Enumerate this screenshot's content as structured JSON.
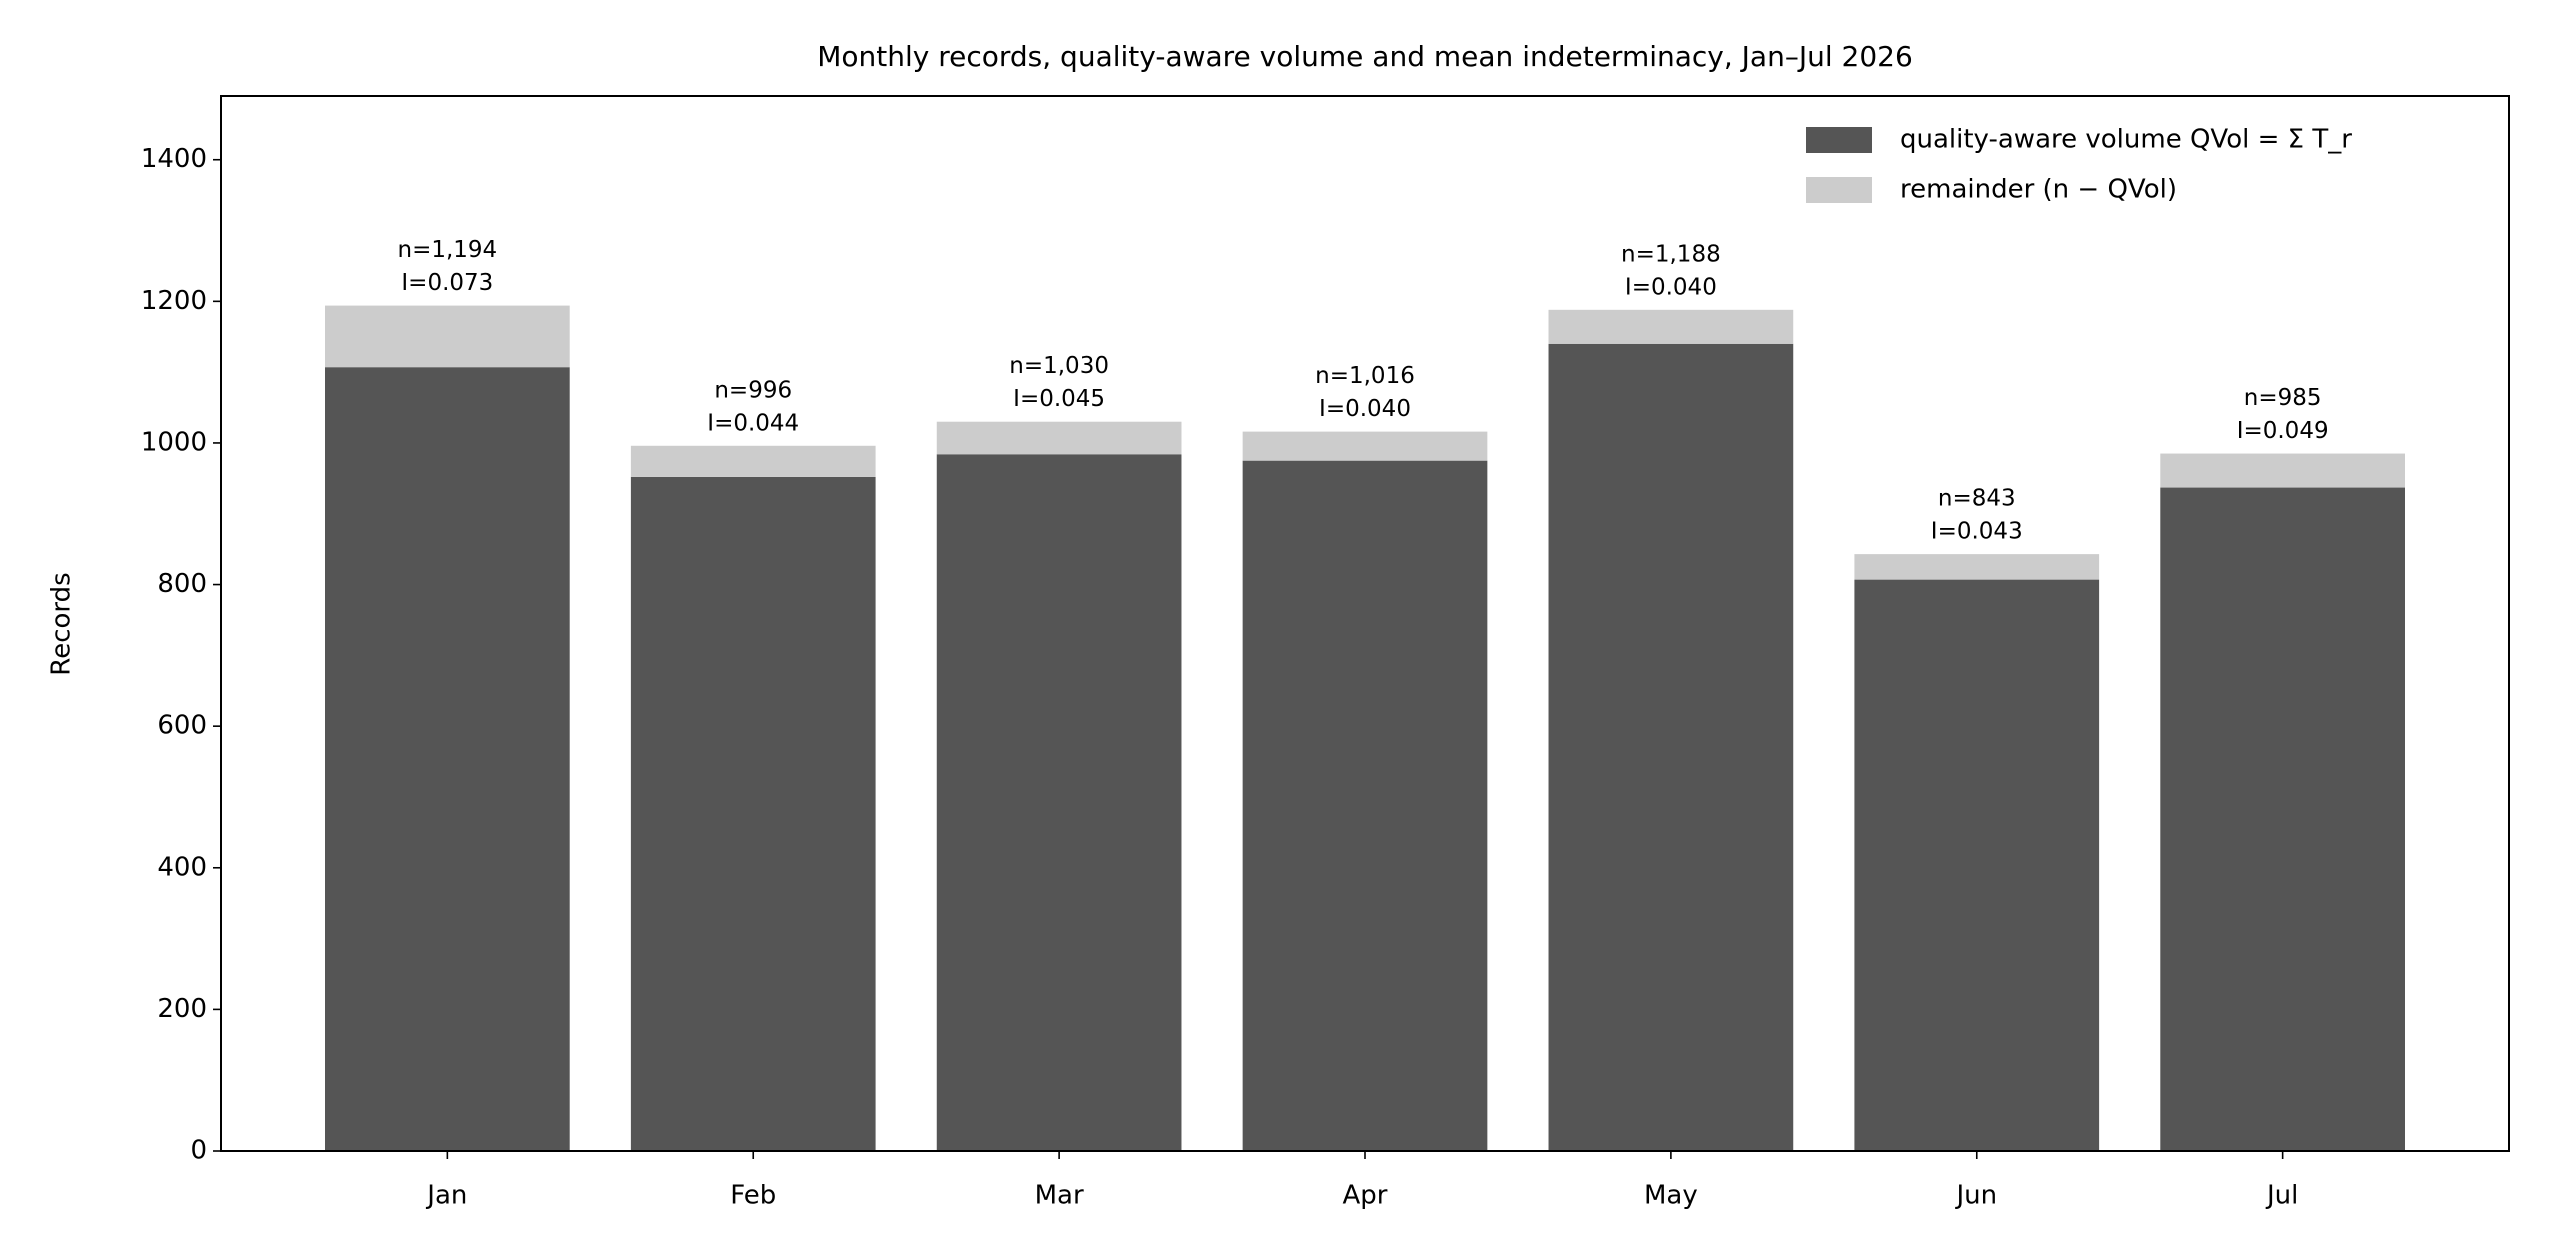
{
  "chart_data": {
    "type": "stacked_bar",
    "title": "Monthly records, quality-aware volume and mean indeterminacy, Jan–Jul 2026",
    "y_label": "Records",
    "categories": [
      "Jan",
      "Feb",
      "Mar",
      "Apr",
      "May",
      "Jun",
      "Jul"
    ],
    "series": [
      {
        "name": "quality-aware volume QVol = Σ T_r",
        "color": "#555555",
        "values": [
          1107,
          952,
          984,
          975,
          1140,
          807,
          937
        ]
      },
      {
        "name": "remainder (n − QVol)",
        "color": "#cccccc",
        "values": [
          87,
          44,
          46,
          41,
          48,
          36,
          48
        ]
      }
    ],
    "totals": {
      "values": [
        1194,
        996,
        1030,
        1016,
        1188,
        843,
        985
      ],
      "value_labels": [
        "n=1,194",
        "n=996",
        "n=1,030",
        "n=1,016",
        "n=1,188",
        "n=843",
        "n=985"
      ]
    },
    "indeterminacy": {
      "values": [
        0.073,
        0.044,
        0.045,
        0.04,
        0.04,
        0.043,
        0.049
      ],
      "value_labels": [
        "I=0.073",
        "I=0.044",
        "I=0.045",
        "I=0.040",
        "I=0.040",
        "I=0.043",
        "I=0.049"
      ]
    },
    "ylim": [
      0,
      1490
    ],
    "yticks": [
      0,
      200,
      400,
      600,
      800,
      1000,
      1200,
      1400
    ],
    "grid": false,
    "legend": "upper right"
  }
}
